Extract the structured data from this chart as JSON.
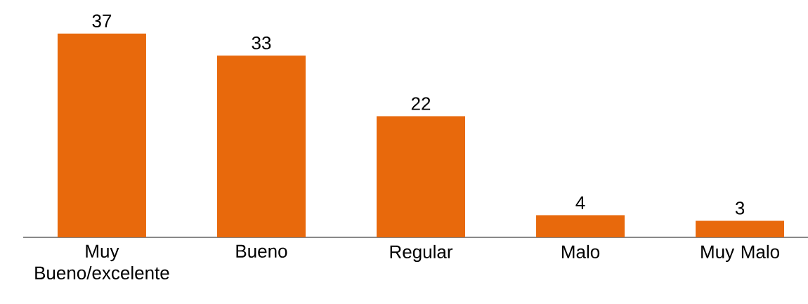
{
  "chart_data": {
    "type": "bar",
    "categories": [
      "Muy Bueno/excelente",
      "Bueno",
      "Regular",
      "Malo",
      "Muy Malo"
    ],
    "values": [
      37,
      33,
      22,
      4,
      3
    ],
    "color": "#e8690c",
    "data_labels": true
  }
}
